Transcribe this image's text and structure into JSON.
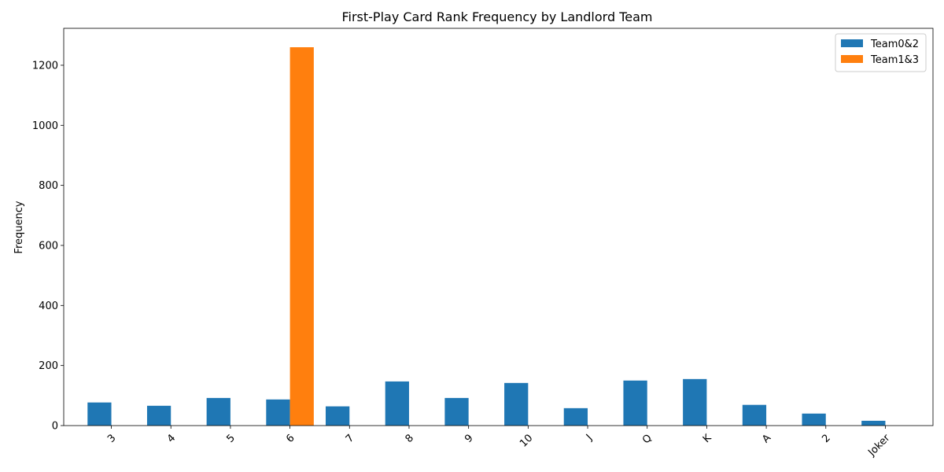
{
  "chart_data": {
    "type": "bar",
    "title": "First-Play Card Rank Frequency by Landlord Team",
    "xlabel": "",
    "ylabel": "Frequency",
    "categories": [
      "3",
      "4",
      "5",
      "6",
      "7",
      "8",
      "9",
      "10",
      "J",
      "Q",
      "K",
      "A",
      "2",
      "Joker"
    ],
    "series": [
      {
        "name": "Team0&2",
        "color": "#1f77b4",
        "values": [
          77,
          66,
          92,
          87,
          64,
          147,
          92,
          142,
          58,
          150,
          155,
          69,
          40,
          16
        ]
      },
      {
        "name": "Team1&3",
        "color": "#ff7f0e",
        "values": [
          0,
          0,
          0,
          1260,
          0,
          0,
          0,
          0,
          0,
          0,
          0,
          0,
          0,
          0
        ]
      }
    ],
    "ylim": [
      0,
      1323
    ],
    "yticks": [
      0,
      200,
      400,
      600,
      800,
      1000,
      1200
    ],
    "legend_position": "top-right",
    "grid": false
  }
}
